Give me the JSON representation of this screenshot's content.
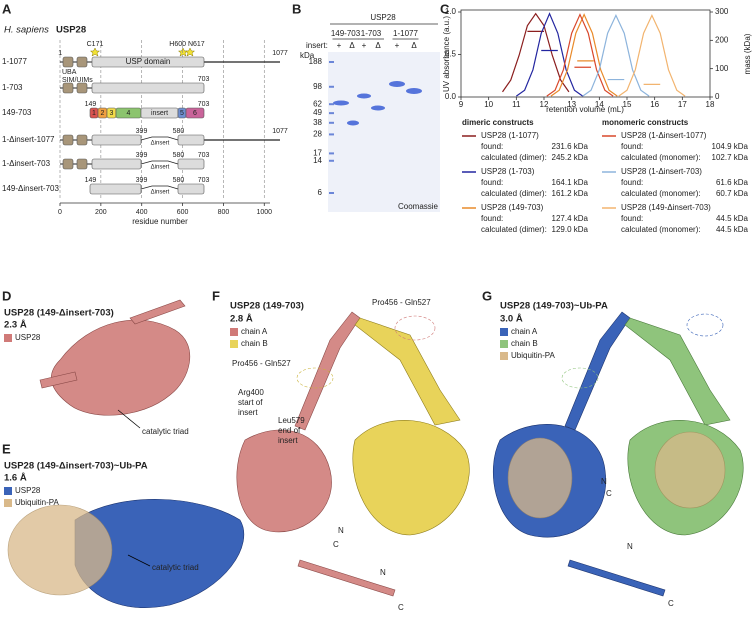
{
  "panels": {
    "A": {
      "letter": "A",
      "species": "H. sapiens",
      "protein": "USP28",
      "uba": "UBA",
      "sim_uims": "SIM/UIMs",
      "usp_domain": "USP domain",
      "c171": "C171",
      "h600_n617": "H600 N617",
      "rows": [
        {
          "name": "1-1077",
          "residues": [
            1,
            1077
          ]
        },
        {
          "name": "1-703",
          "residues": [
            703
          ]
        },
        {
          "name": "149-703",
          "residues": [
            149,
            703
          ],
          "segments": [
            "1",
            "2",
            "3",
            "4",
            "insert",
            "5",
            "6"
          ]
        },
        {
          "name": "1-Δinsert-1077",
          "residues": [
            399,
            580,
            1077
          ],
          "gap": "Δinsert"
        },
        {
          "name": "1-Δinsert-703",
          "residues": [
            399,
            580,
            703
          ],
          "gap": "Δinsert"
        },
        {
          "name": "149-Δinsert-703",
          "residues": [
            149,
            399,
            580,
            703
          ],
          "gap": "Δinsert"
        }
      ],
      "axis": {
        "label": "residue number",
        "xlim": [
          0,
          1077
        ],
        "xticks": [
          0,
          200,
          400,
          600,
          800,
          1000
        ]
      }
    },
    "B": {
      "letter": "B",
      "protein": "USP28",
      "constructs": [
        "149-703",
        "1-703",
        "1-1077"
      ],
      "insert_label": "insert:",
      "lanes": [
        "+",
        "Δ",
        "+",
        "Δ",
        "+",
        "Δ"
      ],
      "unit": "kDa",
      "markers": [
        188,
        98,
        62,
        49,
        38,
        28,
        17,
        14,
        6
      ],
      "stain": "Coomassie"
    },
    "C": {
      "letter": "C"
    },
    "D": {
      "letter": "D",
      "title": "USP28 (149-Δinsert-703)",
      "resolution": "2.3 Å",
      "legend": [
        "USP28"
      ],
      "note": "catalytic triad"
    },
    "E": {
      "letter": "E",
      "title": "USP28 (149-Δinsert-703)~Ub-PA",
      "resolution": "1.6 Å",
      "legend": [
        "USP28",
        "Ubiquitin-PA"
      ],
      "note": "catalytic triad"
    },
    "F": {
      "letter": "F",
      "title": "USP28 (149-703)",
      "resolution": "2.8 Å",
      "legend": [
        "chain A",
        "chain B"
      ],
      "gap_a": "Pro456 - Gln527",
      "gap_b": "Pro456 - Gln527",
      "insert_start": [
        "Arg400",
        "start of",
        "insert"
      ],
      "insert_end": [
        "Leu579",
        "end of",
        "insert"
      ],
      "termini": [
        "N",
        "C",
        "N",
        "C"
      ]
    },
    "G": {
      "letter": "G",
      "title": "USP28 (149-703)~Ub-PA",
      "resolution": "3.0 Å",
      "legend": [
        "chain A",
        "chain B",
        "Ubiquitin-PA"
      ],
      "termini": [
        "N",
        "C",
        "N",
        "C"
      ]
    }
  },
  "chart_data": {
    "type": "line",
    "xlabel": "retention volume (mL)",
    "ylabel": "UV absorbance (a.u.)",
    "y2label": "mass (kDa)",
    "xlim": [
      9,
      18
    ],
    "xticks": [
      9,
      10,
      11,
      12,
      13,
      14,
      15,
      16,
      17,
      18
    ],
    "ylim": [
      0,
      1
    ],
    "yticks": [
      {
        "value": 0,
        "label": "0.0"
      },
      0.5,
      {
        "value": 1,
        "label": "1.0"
      }
    ],
    "y2lim": [
      0,
      300
    ],
    "y2ticks": [
      0,
      100,
      200,
      300
    ],
    "dimeric_header": "dimeric constructs",
    "monomeric_header": "monomeric constructs",
    "series": [
      {
        "name": "USP28 (1-1077)",
        "color": "#8b1e1e",
        "x": [
          10.5,
          10.8,
          11.1,
          11.4,
          11.7,
          12.0,
          12.3,
          12.6,
          12.9
        ],
        "values": [
          0.06,
          0.2,
          0.49,
          0.84,
          0.98,
          0.84,
          0.49,
          0.2,
          0.06
        ],
        "mass": 231.6,
        "mass_x": [
          11.4,
          12.0
        ],
        "found_label": "found:",
        "found": "231.6 kDa",
        "calc_label": "calculated (dimer):",
        "calc": "245.2 kDa"
      },
      {
        "name": "USP28 (1-703)",
        "color": "#2326a0",
        "x": [
          11.0,
          11.3,
          11.6,
          11.9,
          12.2,
          12.5,
          12.8,
          13.1,
          13.4
        ],
        "values": [
          0.01,
          0.08,
          0.32,
          0.75,
          0.98,
          0.75,
          0.32,
          0.08,
          0.01
        ],
        "mass": 164.1,
        "mass_x": [
          11.9,
          12.5
        ],
        "found_label": "found:",
        "found": "164.1 kDa",
        "calc_label": "calculated (dimer):",
        "calc": "161.2 kDa"
      },
      {
        "name": "USP28 (149-703)",
        "color": "#e98a2a",
        "x": [
          12.25,
          12.55,
          12.85,
          13.15,
          13.45,
          13.75,
          14.05,
          14.35,
          14.65
        ],
        "values": [
          0.01,
          0.08,
          0.32,
          0.75,
          0.97,
          0.75,
          0.32,
          0.08,
          0.01
        ],
        "mass": 127.4,
        "mass_x": [
          13.2,
          13.8
        ],
        "found_label": "found:",
        "found": "127.4 kDa",
        "calc_label": "calculated (dimer):",
        "calc": "129.0 kDa"
      },
      {
        "name": "USP28 (1-Δinsert-1077)",
        "color": "#d9482b",
        "x": [
          12.1,
          12.4,
          12.7,
          13.0,
          13.3,
          13.6,
          13.9,
          14.2,
          14.5
        ],
        "values": [
          0.01,
          0.08,
          0.32,
          0.75,
          0.97,
          0.75,
          0.32,
          0.08,
          0.01
        ],
        "mass": 104.9,
        "mass_x": [
          13.1,
          13.7
        ],
        "found_label": "found:",
        "found": "104.9 kDa",
        "calc_label": "calculated (monomer):",
        "calc": "102.7 kDa"
      },
      {
        "name": "USP28 (1-Δinsert-703)",
        "color": "#8db4dc",
        "x": [
          13.4,
          13.7,
          14.0,
          14.3,
          14.6,
          14.9,
          15.2,
          15.5,
          15.8
        ],
        "values": [
          0.01,
          0.08,
          0.32,
          0.75,
          0.96,
          0.75,
          0.32,
          0.08,
          0.01
        ],
        "mass": 61.6,
        "mass_x": [
          14.3,
          14.9
        ],
        "found_label": "found:",
        "found": "61.6 kDa",
        "calc_label": "calculated (monomer):",
        "calc": "60.7 kDa"
      },
      {
        "name": "USP28 (149-Δinsert-703)",
        "color": "#f2b46f",
        "x": [
          14.7,
          15.0,
          15.3,
          15.6,
          15.9,
          16.2,
          16.5,
          16.8,
          17.1
        ],
        "values": [
          0.01,
          0.08,
          0.32,
          0.75,
          0.96,
          0.75,
          0.32,
          0.08,
          0.01
        ],
        "mass": 44.5,
        "mass_x": [
          15.6,
          16.2
        ],
        "found_label": "found:",
        "found": "44.5 kDa",
        "calc_label": "calculated (monomer):",
        "calc": "44.5 kDa"
      }
    ]
  }
}
